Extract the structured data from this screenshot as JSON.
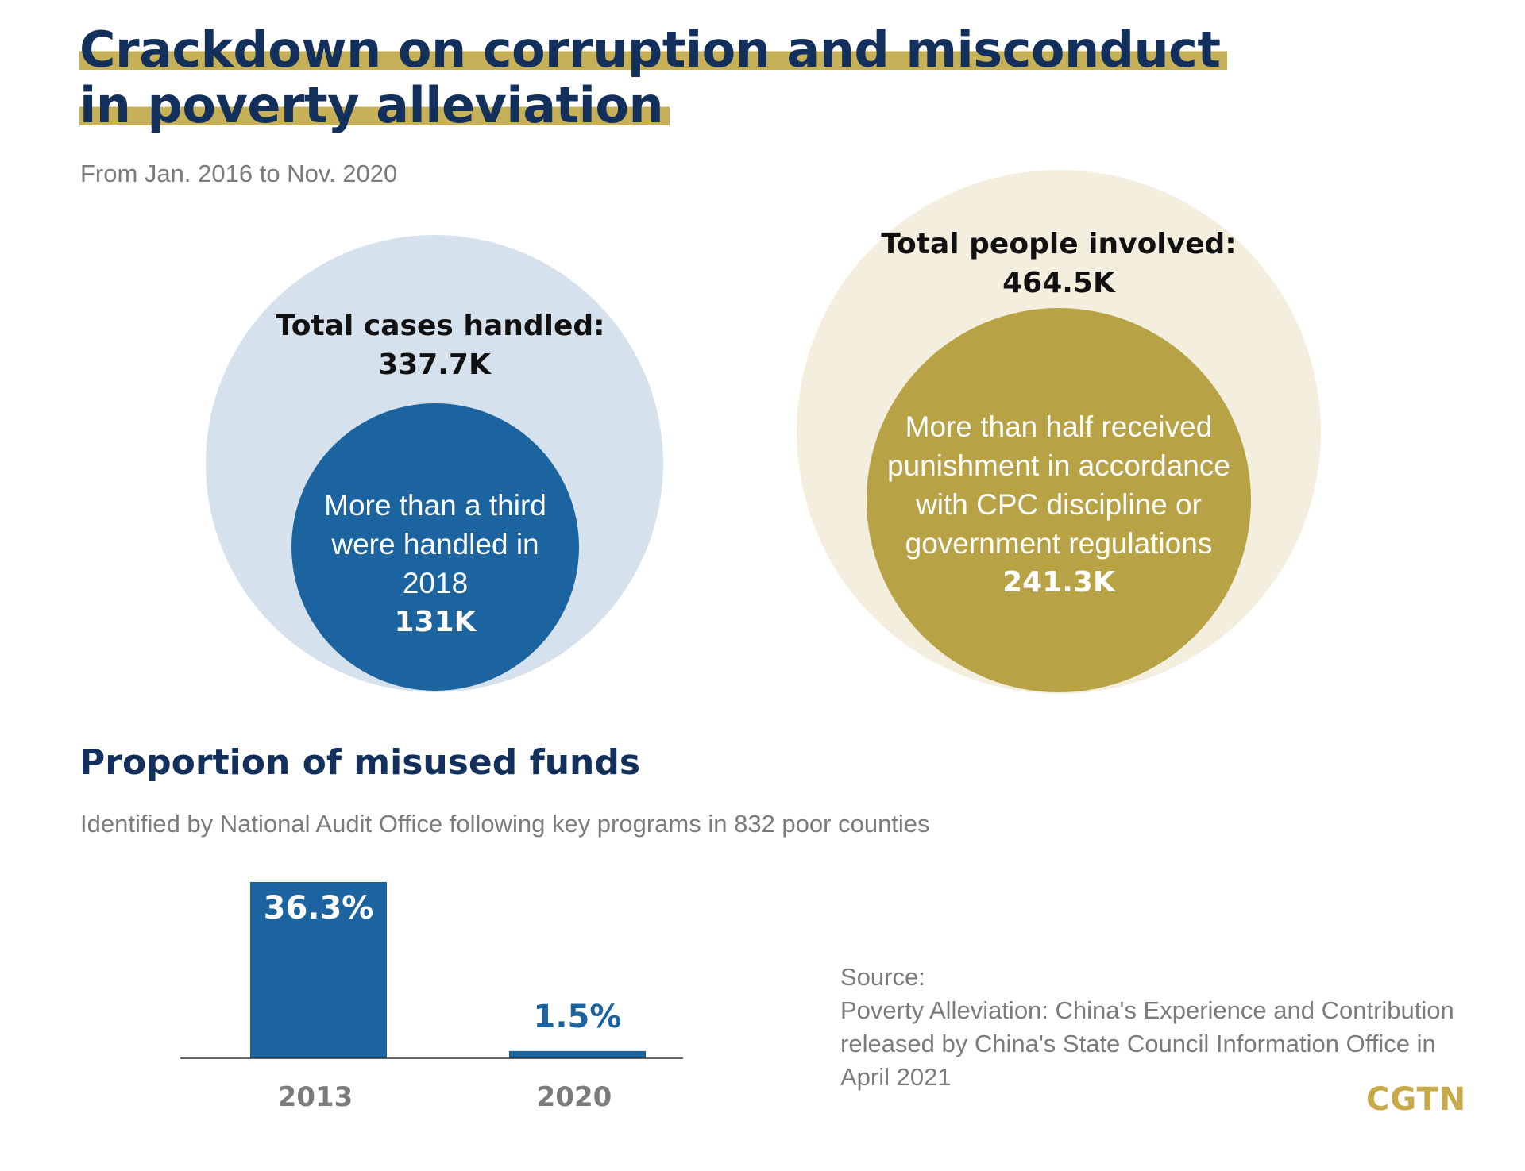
{
  "header": {
    "title_line1": "Crackdown on corruption and misconduct",
    "title_line2": "in poverty alleviation",
    "subtitle": "From Jan. 2016 to Nov. 2020"
  },
  "cases": {
    "label": "Total cases handled:",
    "total": "337.7K",
    "inner_line1": "More than a third",
    "inner_line2": "were handled in",
    "inner_line3": "2018",
    "inner_value": "131K"
  },
  "people": {
    "label": "Total people involved:",
    "total": "464.5K",
    "inner_line1": "More than half received",
    "inner_line2": "punishment in accordance",
    "inner_line3": "with CPC discipline or",
    "inner_line4": "government regulations",
    "inner_value": "241.3K"
  },
  "funds": {
    "title": "Proportion of misused funds",
    "subtitle": "Identified by National Audit Office following key programs in 832 poor counties"
  },
  "colors": {
    "navy": "#13305c",
    "blue": "#1b64a0",
    "light_blue": "#d5e1ec",
    "gold": "#b8a246",
    "cream": "#f3eedd",
    "highlight": "#c7b158"
  },
  "chart_data": {
    "type": "bar",
    "title": "Proportion of misused funds",
    "categories": [
      "2013",
      "2020"
    ],
    "values": [
      36.3,
      1.5
    ],
    "value_labels": [
      "36.3%",
      "1.5%"
    ],
    "unit": "%",
    "ylim": [
      0,
      36.3
    ],
    "grid": false
  },
  "source": {
    "line1": "Source:",
    "line2": "Poverty Alleviation: China's Experience and Contribution",
    "line3": "released by China's State Council Information Office in",
    "line4": "April 2021"
  },
  "logo": "CGTN"
}
